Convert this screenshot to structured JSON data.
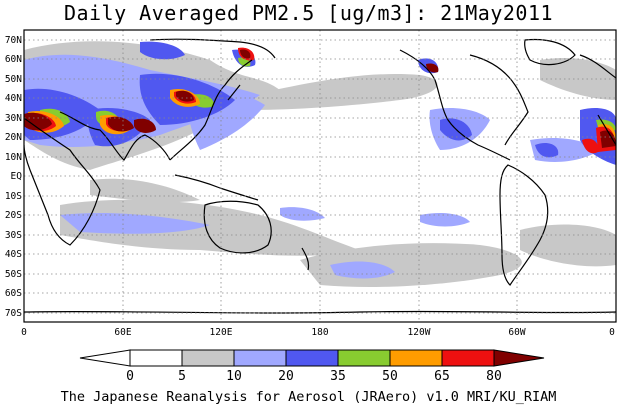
{
  "title": "Daily Averaged PM2.5 [ug/m3]: 21May2011",
  "footer": "The Japanese Reanalysis for Aerosol (JRAero) v1.0 MRI/KU_RIAM",
  "map": {
    "projection": "equirectangular",
    "lon_range": [
      0,
      360
    ],
    "lat_range": [
      -75,
      75
    ],
    "gridlines": "dotted",
    "lat_labels": [
      "70N",
      "60N",
      "50N",
      "40N",
      "30N",
      "20N",
      "10N",
      "EQ",
      "10S",
      "20S",
      "30S",
      "40S",
      "50S",
      "60S",
      "70S"
    ],
    "lon_labels": [
      "0",
      "60E",
      "120E",
      "180",
      "120W",
      "60W",
      "0"
    ]
  },
  "legend": {
    "levels": [
      "0",
      "5",
      "10",
      "20",
      "35",
      "50",
      "65",
      "80"
    ],
    "colors": [
      "#ffffff",
      "#c8c8c8",
      "#a0a8ff",
      "#5058f0",
      "#88cc30",
      "#ff9c00",
      "#ee1010",
      "#800000"
    ]
  }
}
